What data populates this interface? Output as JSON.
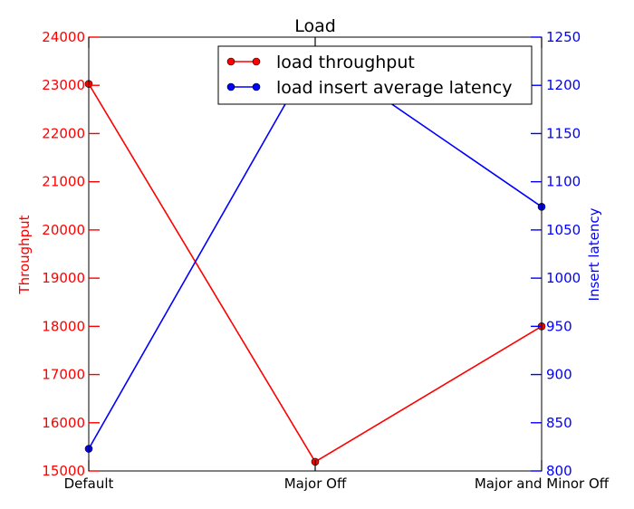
{
  "chart_data": {
    "type": "line",
    "title": "Load",
    "categories": [
      "Default",
      "Major Off",
      "Major and Minor Off"
    ],
    "y_left": {
      "label": "Throughput",
      "range": [
        15000,
        24000
      ],
      "ticks": [
        15000,
        16000,
        17000,
        18000,
        19000,
        20000,
        21000,
        22000,
        23000,
        24000
      ],
      "color": "#ff0000"
    },
    "y_right": {
      "label": "Insert latency",
      "range": [
        800,
        1250
      ],
      "ticks": [
        800,
        850,
        900,
        950,
        1000,
        1050,
        1100,
        1150,
        1200,
        1250
      ],
      "color": "#0000ff"
    },
    "series": [
      {
        "name": "load throughput",
        "axis": "left",
        "color": "#ff0000",
        "values": [
          23030,
          15190,
          18000
        ]
      },
      {
        "name": "load insert average latency",
        "axis": "right",
        "color": "#0000ff",
        "values": [
          823,
          1235,
          1074
        ]
      }
    ],
    "legend": {
      "position": "top-right"
    },
    "grid": false
  }
}
